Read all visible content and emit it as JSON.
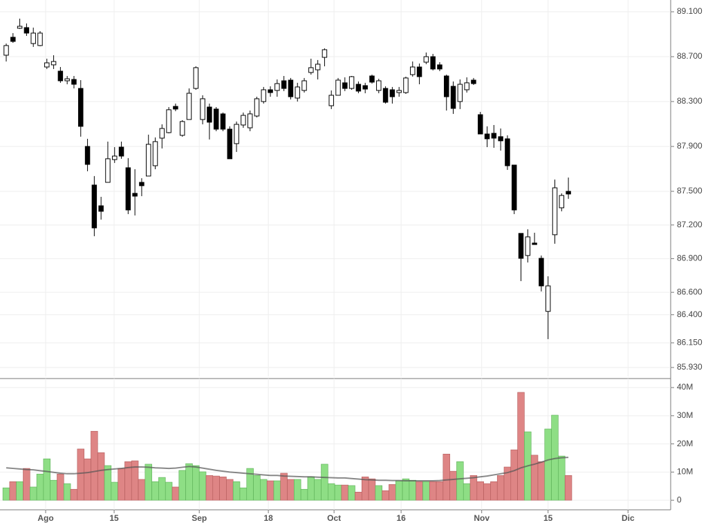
{
  "chart_data": [
    {
      "type": "candlestick",
      "open": [
        88713,
        88873,
        88953,
        88959,
        88817,
        88799,
        88608,
        88627,
        88571,
        88485,
        88497,
        88417,
        87900,
        87556,
        87371,
        87580,
        87783,
        87894,
        87710,
        87482,
        87580,
        87636,
        87728,
        87974,
        88023,
        88257,
        87999,
        88140,
        88417,
        88140,
        88251,
        88233,
        88190,
        88054,
        87925,
        88091,
        88066,
        88171,
        88300,
        88405,
        88399,
        88485,
        88491,
        88331,
        88399,
        88559,
        88583,
        88694,
        88263,
        88356,
        88467,
        88417,
        88454,
        88442,
        88528,
        88399,
        88417,
        88405,
        88380,
        88380,
        88540,
        88608,
        88651,
        88700,
        88627,
        88528,
        88436,
        88300,
        88405,
        88491,
        88183,
        88011,
        88017,
        87987,
        87968,
        87734,
        87125,
        86928,
        87039,
        86903,
        86430,
        87113,
        87353,
        87500
      ],
      "high": [
        88817,
        88910,
        89039,
        88996,
        88959,
        88928,
        88682,
        88713,
        88608,
        88528,
        88528,
        88491,
        87968,
        87636,
        87451,
        87943,
        87894,
        87943,
        87796,
        87697,
        87617,
        88005,
        87980,
        88097,
        88251,
        88282,
        88134,
        88417,
        88614,
        88356,
        88282,
        88251,
        88202,
        88079,
        88122,
        88202,
        88220,
        88343,
        88430,
        88436,
        88497,
        88528,
        88510,
        88467,
        88510,
        88682,
        88670,
        88774,
        88399,
        88510,
        88516,
        88528,
        88479,
        88467,
        88540,
        88503,
        88436,
        88430,
        88430,
        88522,
        88657,
        88639,
        88737,
        88725,
        88651,
        88540,
        88479,
        88497,
        88516,
        88510,
        88208,
        88079,
        88091,
        88060,
        87999,
        87734,
        87125,
        87162,
        87131,
        86928,
        86743,
        87605,
        87482,
        87623
      ],
      "low": [
        88657,
        88823,
        88947,
        88885,
        88787,
        88793,
        88590,
        88590,
        88467,
        88454,
        88417,
        87987,
        87679,
        87100,
        87248,
        87580,
        87753,
        87790,
        87297,
        87285,
        87457,
        87636,
        87697,
        87882,
        88017,
        88214,
        87987,
        88140,
        88405,
        88097,
        87962,
        88036,
        88036,
        87790,
        87851,
        88066,
        88036,
        88159,
        88282,
        88343,
        88343,
        88393,
        88319,
        88300,
        88380,
        88540,
        88497,
        88614,
        88233,
        88356,
        88393,
        88405,
        88374,
        88374,
        88460,
        88374,
        88282,
        88282,
        88343,
        88368,
        88522,
        88454,
        88633,
        88577,
        88571,
        88220,
        88190,
        88233,
        88380,
        88448,
        88011,
        87894,
        87888,
        87863,
        87691,
        87297,
        86700,
        86866,
        87026,
        86608,
        86183,
        87033,
        87322,
        87433
      ],
      "close": [
        88799,
        88836,
        88971,
        88910,
        88910,
        88910,
        88645,
        88657,
        88485,
        88503,
        88454,
        88079,
        87740,
        87174,
        87322,
        87790,
        87814,
        87814,
        87334,
        87457,
        87550,
        87919,
        87943,
        88060,
        88227,
        88233,
        88122,
        88374,
        88602,
        88325,
        88116,
        88054,
        88054,
        87790,
        88097,
        88177,
        88190,
        88325,
        88405,
        88380,
        88460,
        88417,
        88343,
        88430,
        88485,
        88602,
        88633,
        88762,
        88356,
        88491,
        88417,
        88522,
        88393,
        88411,
        88473,
        88485,
        88294,
        88343,
        88399,
        88510,
        88608,
        88522,
        88700,
        88590,
        88590,
        88343,
        88239,
        88454,
        88467,
        88460,
        88011,
        87968,
        87974,
        87950,
        87728,
        87334,
        86903,
        87094,
        87026,
        86657,
        86657,
        87531,
        87463,
        87476
      ],
      "up_color": "#ffffff",
      "down_color": "#000000",
      "grid": true,
      "xlim": [
        -0.92,
        98.1
      ],
      "ylim": [
        85850,
        89205
      ],
      "yticks": [
        {
          "value": 89100,
          "label": "89.100"
        },
        {
          "value": 88700,
          "label": "88.700"
        },
        {
          "value": 88300,
          "label": "88.300"
        },
        {
          "value": 87900,
          "label": "87.900"
        },
        {
          "value": 87500,
          "label": "87.500"
        },
        {
          "value": 87200,
          "label": "87.200"
        },
        {
          "value": 86900,
          "label": "86.900"
        },
        {
          "value": 86600,
          "label": "86.600"
        },
        {
          "value": 86400,
          "label": "86.400"
        },
        {
          "value": 86150,
          "label": "86.150"
        },
        {
          "value": 85930,
          "label": "85.930"
        }
      ]
    },
    {
      "type": "bar",
      "values": [
        4400000,
        6600000,
        6600000,
        11300000,
        4700000,
        9300000,
        14700000,
        7100000,
        9300000,
        5900000,
        3900000,
        18200000,
        14700000,
        24500000,
        16900000,
        12300000,
        6400000,
        11300000,
        13700000,
        14000000,
        7400000,
        12800000,
        6600000,
        8100000,
        6400000,
        4700000,
        10600000,
        13000000,
        12300000,
        10100000,
        8800000,
        8600000,
        8300000,
        7400000,
        6600000,
        4400000,
        11300000,
        8800000,
        7400000,
        6900000,
        6900000,
        9600000,
        7400000,
        7400000,
        3900000,
        8300000,
        7400000,
        12800000,
        5900000,
        5400000,
        5400000,
        5200000,
        2900000,
        8300000,
        7600000,
        5200000,
        3400000,
        5600000,
        6900000,
        7600000,
        7100000,
        6600000,
        6600000,
        6600000,
        6600000,
        16400000,
        10300000,
        13700000,
        5900000,
        8800000,
        6600000,
        5900000,
        6600000,
        8800000,
        11800000,
        17900000,
        38300000,
        24300000,
        16000000,
        13700000,
        25300000,
        30200000,
        15700000,
        8800000
      ],
      "moving_average": [
        11500000,
        11300000,
        11100000,
        10900000,
        10800000,
        10500000,
        10200000,
        9900000,
        9600000,
        9400000,
        9400000,
        9600000,
        9800000,
        10200000,
        10600000,
        10900000,
        11100000,
        11300000,
        11600000,
        11800000,
        11800000,
        11700000,
        11500000,
        11400000,
        11300000,
        11400000,
        11700000,
        12000000,
        11800000,
        11400000,
        11000000,
        10600000,
        10300000,
        10000000,
        9800000,
        9600000,
        9400000,
        9200000,
        9000000,
        8800000,
        8800000,
        8600000,
        8500000,
        8400000,
        8300000,
        8300000,
        8200000,
        8100000,
        8000000,
        7900000,
        7900000,
        7700000,
        7500000,
        7300000,
        7200000,
        7100000,
        7100000,
        7000000,
        7000000,
        6900000,
        6900000,
        6900000,
        6900000,
        6900000,
        7000000,
        7200000,
        7400000,
        7600000,
        7800000,
        8000000,
        8300000,
        8600000,
        9000000,
        9400000,
        9800000,
        10500000,
        11500000,
        12200000,
        12800000,
        13500000,
        14300000,
        14800000,
        15100000,
        15200000
      ],
      "up_color": "#8ede85",
      "down_color": "#de8585",
      "ma_color": "#555555",
      "grid": true,
      "xlim": [
        -0.92,
        98.1
      ],
      "xticks": [
        {
          "value": 5.82,
          "label": "Ago"
        },
        {
          "value": 15.93,
          "label": "15"
        },
        {
          "value": 28.5,
          "label": "Sep"
        },
        {
          "value": 38.7,
          "label": "18"
        },
        {
          "value": 48.4,
          "label": "Oct"
        },
        {
          "value": 58.3,
          "label": "16"
        },
        {
          "value": 70.2,
          "label": "Nov"
        },
        {
          "value": 80.0,
          "label": "15"
        },
        {
          "value": 91.8,
          "label": "Dic"
        }
      ],
      "ylim": [
        -3400000,
        43200000
      ],
      "yticks": [
        0,
        {
          "value": 10000000,
          "label": "10M"
        },
        {
          "value": 20000000,
          "label": "20M"
        },
        {
          "value": 30000000,
          "label": "30M"
        },
        {
          "value": 40000000,
          "label": "40M"
        }
      ]
    }
  ]
}
